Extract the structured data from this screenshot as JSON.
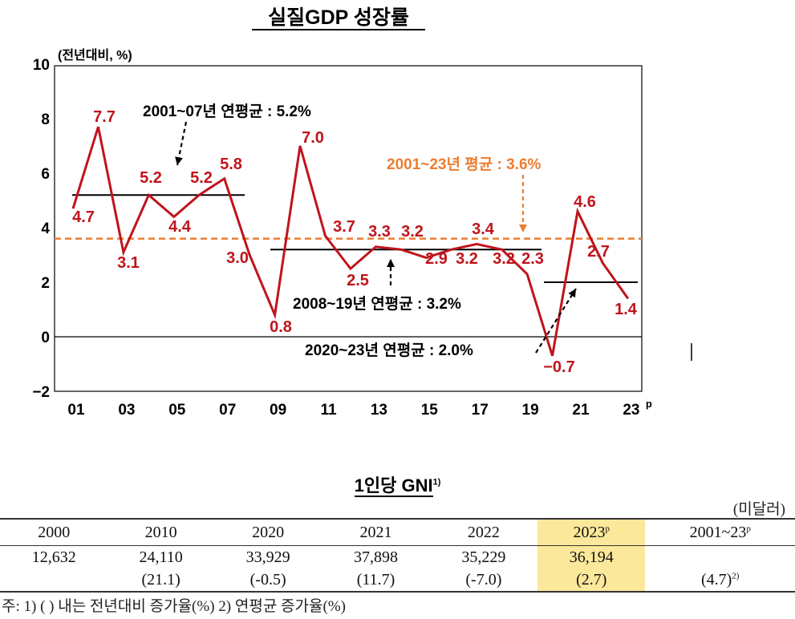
{
  "chart_data": {
    "type": "line",
    "title": "실질GDP 성장률",
    "ylabel": "(전년대비, %)",
    "ylim": [
      -2,
      10
    ],
    "yticks": [
      "10",
      "8",
      "6",
      "4",
      "2",
      "0",
      "−2"
    ],
    "xtick_labels": [
      "01",
      "03",
      "05",
      "07",
      "09",
      "11",
      "13",
      "15",
      "17",
      "19",
      "21",
      "23"
    ],
    "xtick_superscript": "p",
    "x": [
      2001,
      2002,
      2003,
      2004,
      2005,
      2006,
      2007,
      2008,
      2009,
      2010,
      2011,
      2012,
      2013,
      2014,
      2015,
      2016,
      2017,
      2018,
      2019,
      2020,
      2021,
      2022,
      2023
    ],
    "values": [
      4.7,
      7.7,
      3.1,
      5.2,
      4.4,
      5.2,
      5.8,
      3.0,
      0.8,
      7.0,
      3.7,
      2.5,
      3.3,
      3.2,
      2.9,
      3.2,
      3.4,
      3.2,
      2.3,
      -0.7,
      4.6,
      2.7,
      1.4
    ],
    "data_labels": [
      "4.7",
      "7.7",
      "3.1",
      "5.2",
      "4.4",
      "5.2",
      "5.8",
      "3.0",
      "0.8",
      "7.0",
      "3.7",
      "2.5",
      "3.3",
      "3.2",
      "2.9",
      "3.2",
      "3.4",
      "3.2",
      "2.3",
      "−0.7",
      "4.6",
      "2.7",
      "1.4"
    ],
    "averages": [
      {
        "label": "2001~07년 연평균 : 5.2%",
        "value": 5.2,
        "from": 2001,
        "to": 2007
      },
      {
        "label": "2008~19년 연평균 : 3.2%",
        "value": 3.2,
        "from": 2008,
        "to": 2019
      },
      {
        "label": "2020~23년 연평균 : 2.0%",
        "value": 2.0,
        "from": 2020,
        "to": 2023
      },
      {
        "label": "2001~23년 평균 : 3.6%",
        "value": 3.6,
        "from": 2001,
        "to": 2023
      }
    ],
    "grid": false,
    "colors": {
      "line": "#c0141c",
      "overall_avg": "#ed7d31",
      "text": "#000000"
    }
  },
  "gni": {
    "title": "1인당 GNI",
    "title_sup": "1)",
    "unit": "(미달러)",
    "headers": [
      "2000",
      "2010",
      "2020",
      "2021",
      "2022",
      "2023",
      "2001~23"
    ],
    "header_sups": [
      "",
      "",
      "",
      "",
      "",
      "p",
      "p"
    ],
    "values": [
      "12,632",
      "24,110",
      "33,929",
      "37,898",
      "35,229",
      "36,194",
      ""
    ],
    "growth": [
      "",
      "(21.1)",
      "(-0.5)",
      "(11.7)",
      "(-7.0)",
      "(2.7)",
      "(4.7)"
    ],
    "growth_sups": [
      "",
      "",
      "",
      "",
      "",
      "",
      "2)"
    ],
    "highlight_color": "#fbe89a",
    "note": "주: 1) ( ) 내는 전년대비 증가율(%)        2) 연평균 증가율(%)"
  }
}
